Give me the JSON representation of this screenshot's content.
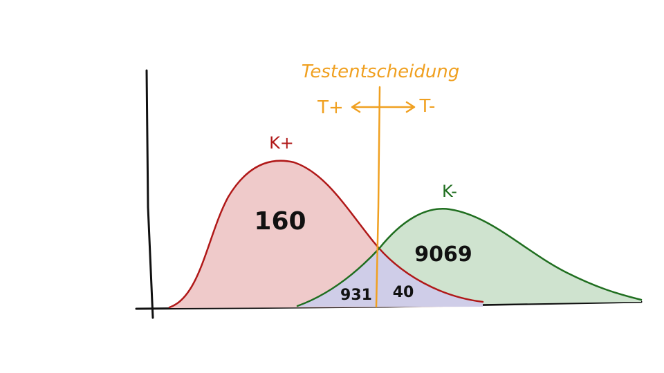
{
  "decision": {
    "label": "Testentscheidung",
    "left": "T+",
    "right": "T-",
    "color": "#f0a020"
  },
  "classes": {
    "positive": {
      "label": "K+",
      "color": "#b01818",
      "fill": "#efcaca"
    },
    "negative": {
      "label": "K-",
      "color": "#1f6e1f",
      "fill": "#cfe3cf"
    }
  },
  "counts": {
    "true_positive": "160",
    "true_negative": "9069",
    "false_positive": "931",
    "false_negative": "40"
  },
  "overlap_fill": "#cfcde8"
}
